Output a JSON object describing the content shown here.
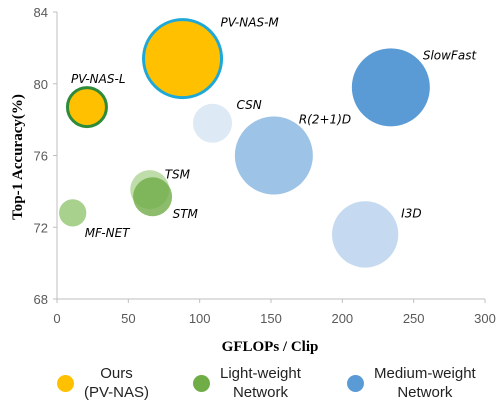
{
  "chart_data": {
    "type": "scatter",
    "xlabel": "GFLOPs / Clip",
    "ylabel": "Top-1 Accuracy(%)",
    "xlim": [
      0,
      300
    ],
    "ylim": [
      68,
      84
    ],
    "xticks": [
      "0",
      "50",
      "100",
      "150",
      "200",
      "250",
      "300"
    ],
    "yticks": [
      "68",
      "72",
      "76",
      "80",
      "84"
    ],
    "grid": false,
    "legend_position": "bottom",
    "points": [
      {
        "label": "PV-NAS-M",
        "x": 88,
        "y": 81.4,
        "bubble_size": 20,
        "group": "ours",
        "highlight": true
      },
      {
        "label": "PV-NAS-L",
        "x": 21,
        "y": 78.7,
        "bubble_size": 10,
        "group": "ours",
        "highlight": true
      },
      {
        "label": "SlowFast",
        "x": 234,
        "y": 79.8,
        "bubble_size": 20,
        "group": "medium"
      },
      {
        "label": "CSN",
        "x": 109,
        "y": 77.8,
        "bubble_size": 10,
        "group": "medium-pale"
      },
      {
        "label": "R(2+1)D",
        "x": 152,
        "y": 76.0,
        "bubble_size": 20,
        "group": "medium-light"
      },
      {
        "label": "TSM",
        "x": 65,
        "y": 74.1,
        "bubble_size": 10,
        "group": "light-pale"
      },
      {
        "label": "STM",
        "x": 67,
        "y": 73.7,
        "bubble_size": 10,
        "group": "light"
      },
      {
        "label": "MF-NET",
        "x": 11,
        "y": 72.8,
        "bubble_size": 7,
        "group": "light-pale"
      },
      {
        "label": "I3D",
        "x": 216,
        "y": 71.6,
        "bubble_size": 17,
        "group": "medium-pale"
      }
    ],
    "legend": [
      {
        "label": "Ours\n(PV-NAS)",
        "color": "#ffc000"
      },
      {
        "label": "Light-weight\nNetwork",
        "color": "#70ad47"
      },
      {
        "label": "Medium-weight\nNetwork",
        "color": "#5b9bd5"
      }
    ],
    "colors": {
      "ours": "#ffc000",
      "ours_border": "#1ea8d8",
      "ours_border_small": "#2e8b3a",
      "light": "#70ad47",
      "light-pale": "#a9d18e",
      "medium": "#5b9bd5",
      "medium-light": "#9dc3e6",
      "medium-pale": "#c5daf0",
      "csn": "#dde9f5"
    }
  }
}
